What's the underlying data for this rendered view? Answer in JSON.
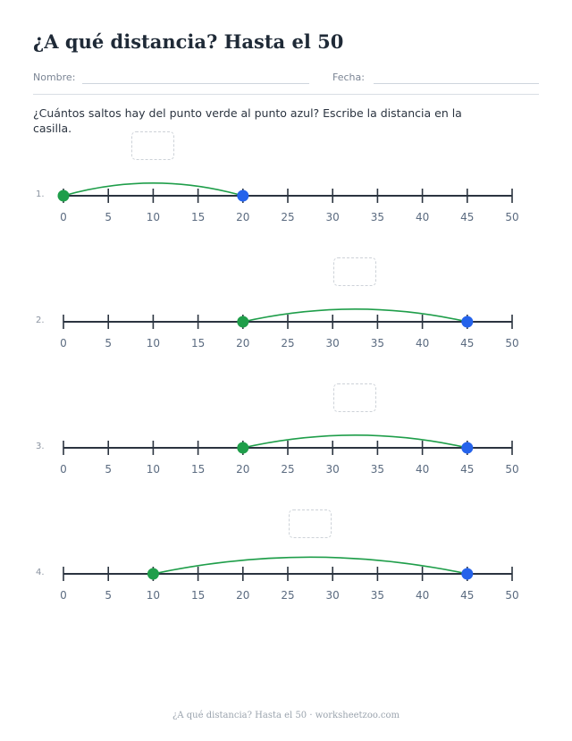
{
  "title": "¿A qué distancia? Hasta el 50",
  "header": {
    "name_label": "Nombre:",
    "date_label": "Fecha:"
  },
  "instructions": "¿Cuántos saltos hay del punto verde al punto azul? Escribe la distancia en la casilla.",
  "number_line": {
    "min": 0,
    "max": 50,
    "tick_step": 5,
    "tick_labels": [
      "0",
      "5",
      "10",
      "15",
      "20",
      "25",
      "30",
      "35",
      "40",
      "45",
      "50"
    ]
  },
  "problems": [
    {
      "label": "1.",
      "start": 0,
      "end": 20,
      "answer": ""
    },
    {
      "label": "2.",
      "start": 20,
      "end": 45,
      "answer": ""
    },
    {
      "label": "3.",
      "start": 20,
      "end": 45,
      "answer": ""
    },
    {
      "label": "4.",
      "start": 10,
      "end": 45,
      "answer": ""
    }
  ],
  "colors": {
    "start_point": "#1f9e4a",
    "end_point": "#2563eb",
    "arc": "#1f9e4a",
    "axis": "#2b3440",
    "tick_label": "#5b6b80"
  },
  "footer": "¿A qué distancia? Hasta el 50 · worksheetzoo.com"
}
